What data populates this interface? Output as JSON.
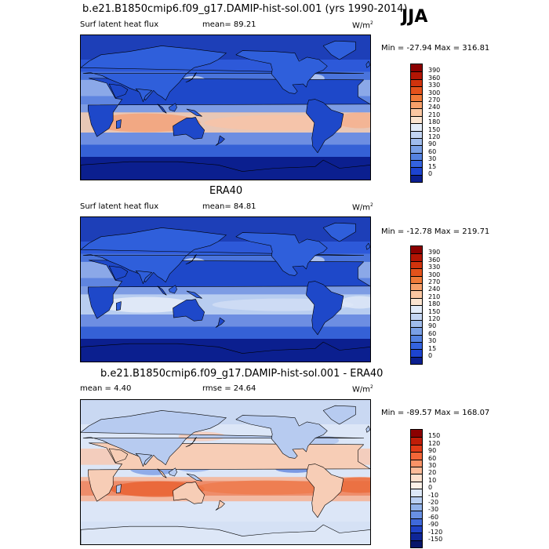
{
  "season": "JJA",
  "panels": [
    {
      "title": "b.e21.B1850cmip6.f09_g17.DAMIP-hist-sol.001 (yrs 1990-2014)",
      "left_label": "Surf latent heat flux",
      "mid_label": "mean=  89.21",
      "units": "W/m",
      "units_sup": "2",
      "minmax": "Min = -27.94 Max = 316.81",
      "colorbar": {
        "labels": [
          "390",
          "360",
          "330",
          "300",
          "270",
          "240",
          "210",
          "180",
          "150",
          "120",
          "90",
          "60",
          "30",
          "15",
          "0"
        ],
        "colors": [
          "#8b0000",
          "#b31504",
          "#d0330d",
          "#e4521b",
          "#f07a38",
          "#f7a06a",
          "#fbc7a2",
          "#fbe4d0",
          "#e3ecf9",
          "#c3d5f3",
          "#a0bcec",
          "#7aa0e6",
          "#5482e1",
          "#3463df",
          "#1d44d0",
          "#0b1f8f"
        ]
      },
      "map_style": "hist"
    },
    {
      "title": "ERA40",
      "left_label": "Surf latent heat flux",
      "mid_label": "mean=  84.81",
      "units": "W/m",
      "units_sup": "2",
      "minmax": "Min = -12.78 Max = 219.71",
      "colorbar": {
        "labels": [
          "390",
          "360",
          "330",
          "300",
          "270",
          "240",
          "210",
          "180",
          "150",
          "120",
          "90",
          "60",
          "30",
          "15",
          "0"
        ],
        "colors": [
          "#8b0000",
          "#b31504",
          "#d0330d",
          "#e4521b",
          "#f07a38",
          "#f7a06a",
          "#fbc7a2",
          "#fbe4d0",
          "#e3ecf9",
          "#c3d5f3",
          "#a0bcec",
          "#7aa0e6",
          "#5482e1",
          "#3463df",
          "#1d44d0",
          "#0b1f8f"
        ]
      },
      "map_style": "obs"
    },
    {
      "title": "b.e21.B1850cmip6.f09_g17.DAMIP-hist-sol.001 - ERA40",
      "left_label": "mean =   4.40",
      "mid_label": "rmse =  24.64",
      "units": "W/m",
      "units_sup": "2",
      "minmax": "Min = -89.57 Max = 168.07",
      "colorbar": {
        "labels": [
          "150",
          "120",
          "90",
          "60",
          "30",
          "20",
          "10",
          "0",
          "-10",
          "-20",
          "-30",
          "-60",
          "-90",
          "-120",
          "-150"
        ],
        "colors": [
          "#8b0000",
          "#c01d08",
          "#e23b17",
          "#f36638",
          "#fa9367",
          "#fcbb99",
          "#fde0cd",
          "#fdf1e8",
          "#dde8f8",
          "#b9cff2",
          "#91b2ea",
          "#6890e3",
          "#3f69da",
          "#1f42c6",
          "#0f2698",
          "#08166a"
        ]
      },
      "map_style": "diff"
    }
  ]
}
